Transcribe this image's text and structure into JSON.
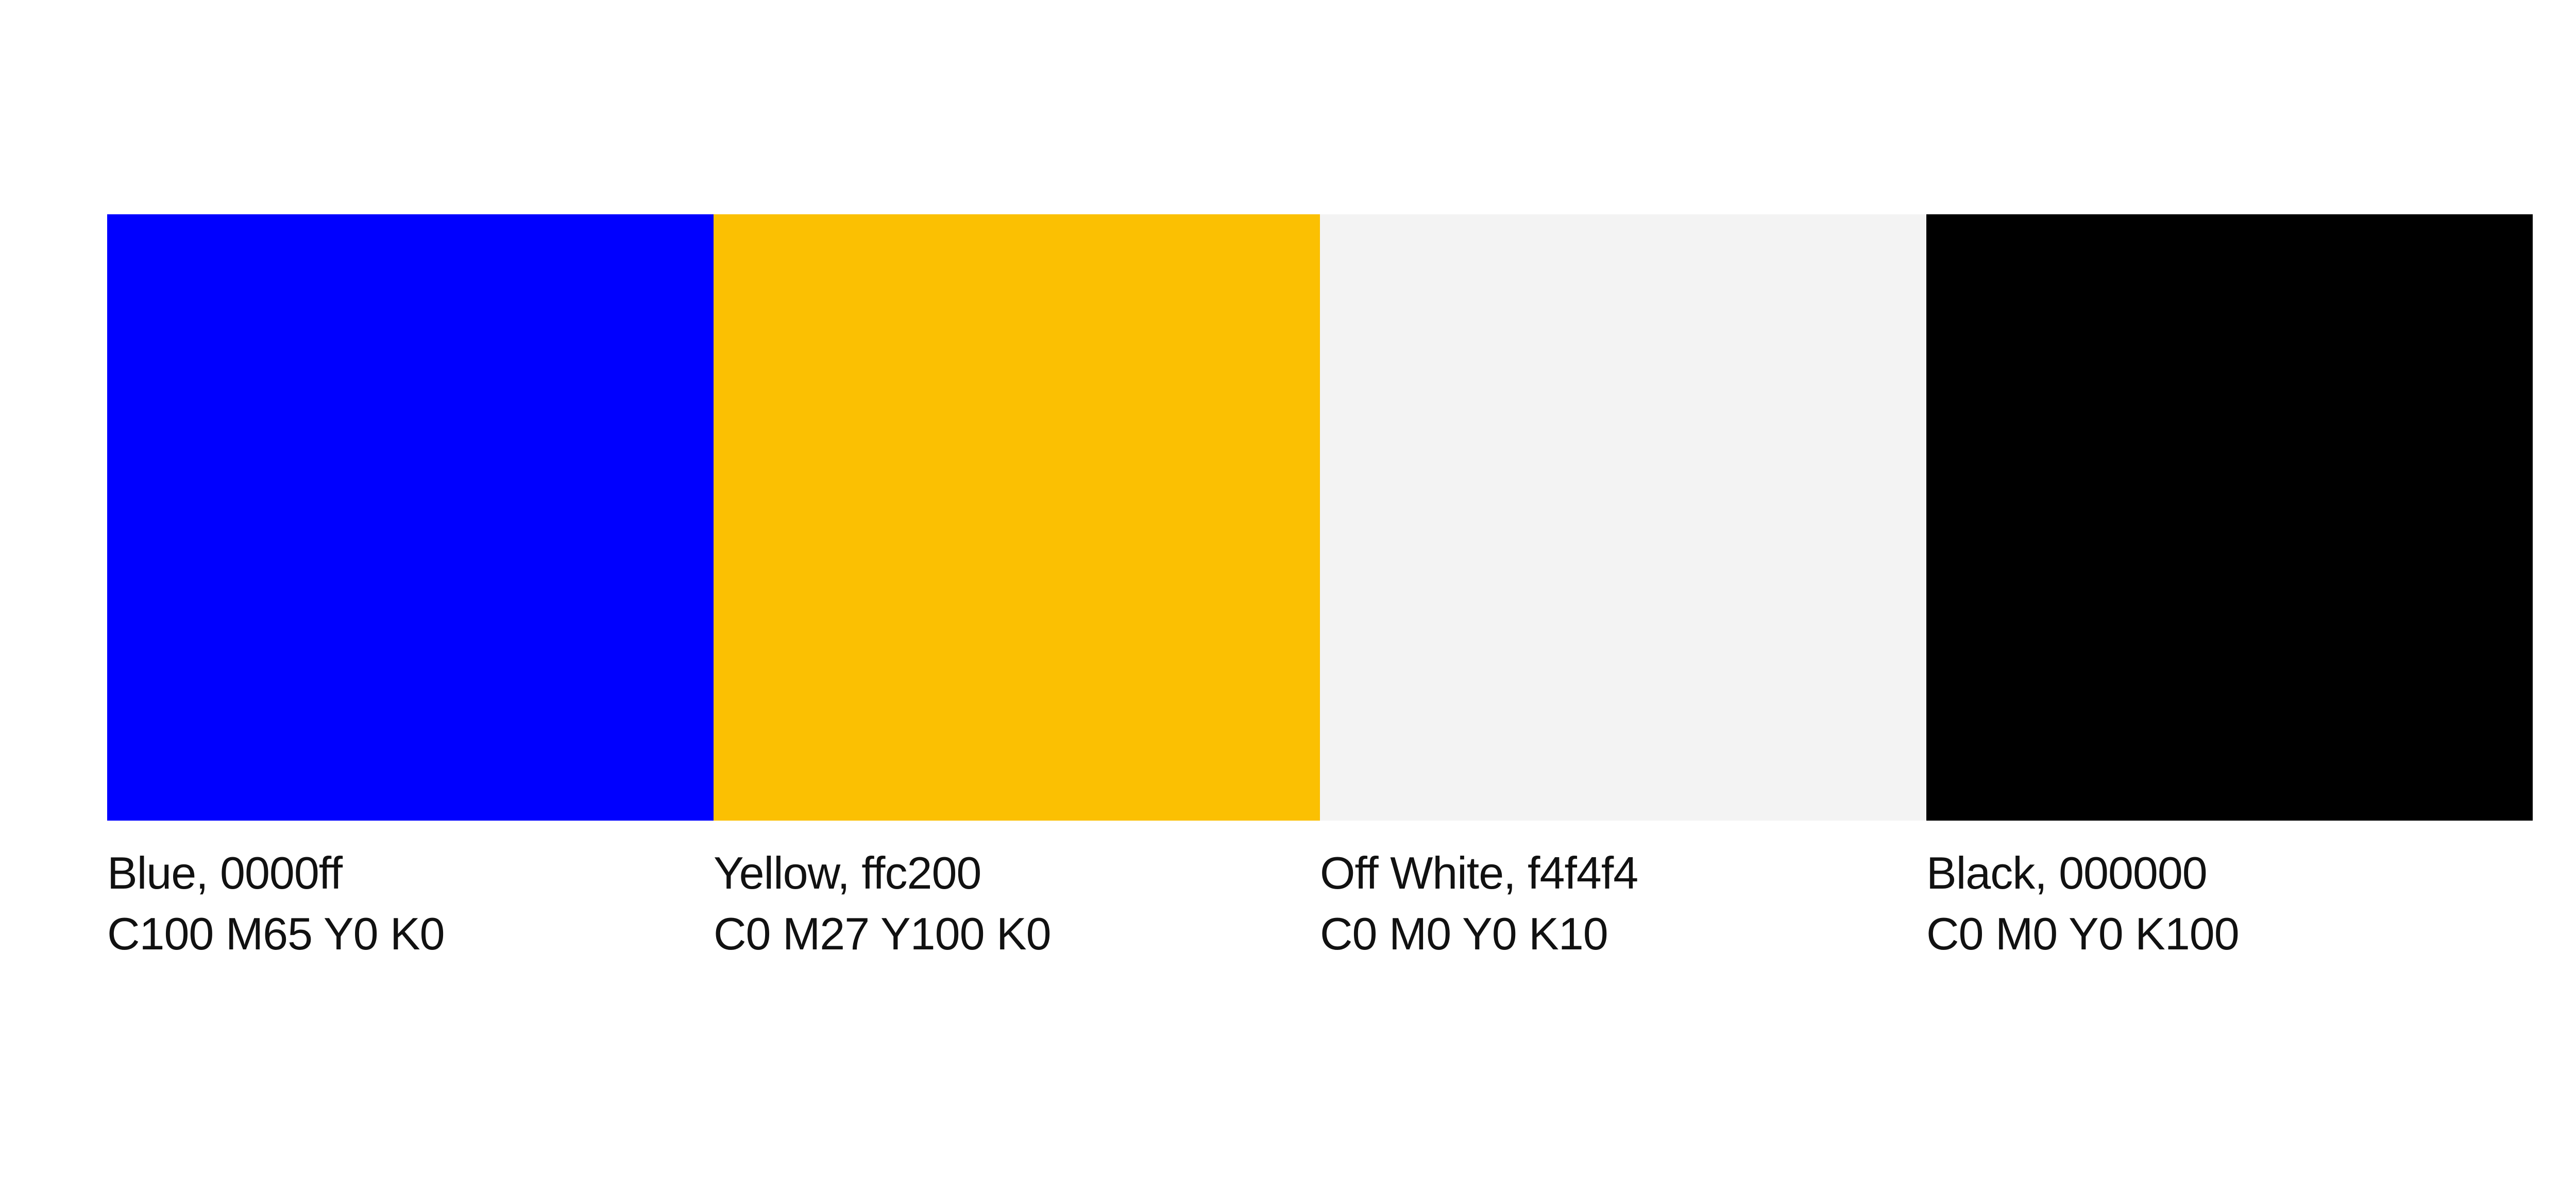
{
  "swatches": [
    {
      "label": "Blue, 0000ff",
      "cmyk": "C100 M65 Y0 K0",
      "color": "#0000ff"
    },
    {
      "label": "Yellow, ffc200",
      "cmyk": "C0 M27 Y100 K0",
      "color": "#fbc002"
    },
    {
      "label": "Off White, f4f4f4",
      "cmyk": "C0 M0 Y0 K10",
      "color": "#f3f3f3"
    },
    {
      "label": "Black, 000000",
      "cmyk": "C0 M0 Y0 K100",
      "color": "#000000"
    }
  ]
}
